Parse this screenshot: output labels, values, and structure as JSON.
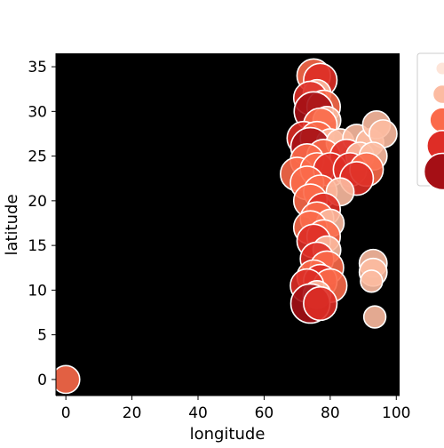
{
  "chart_data": {
    "type": "scatter",
    "title": "",
    "xlabel": "longitude",
    "ylabel": "latitude",
    "xlim": [
      -3,
      101
    ],
    "ylim": [
      -1.8,
      36.5
    ],
    "x_ticks": [
      0,
      20,
      40,
      60,
      80,
      100
    ],
    "y_ticks": [
      0,
      5,
      10,
      15,
      20,
      25,
      30,
      35
    ],
    "plot_background": "#000000",
    "grid": false,
    "legend_placement": "right, partially cropped",
    "legend_sizes": [
      1,
      2,
      3,
      4,
      5
    ],
    "legend_colors": [
      "#fee5d9",
      "#fcbba1",
      "#fb6a4a",
      "#de2d26",
      "#a50f15"
    ],
    "points": [
      {
        "x": 0,
        "y": 0,
        "size": 3,
        "color": "#fb6a4a"
      },
      {
        "x": 75,
        "y": 34,
        "size": 4,
        "color": "#fb6a4a"
      },
      {
        "x": 77,
        "y": 33.5,
        "size": 4,
        "color": "#de2d26"
      },
      {
        "x": 76,
        "y": 32,
        "size": 3,
        "color": "#fcbba1"
      },
      {
        "x": 74,
        "y": 31.5,
        "size": 4,
        "color": "#de2d26"
      },
      {
        "x": 78,
        "y": 30.5,
        "size": 4,
        "color": "#fb6a4a"
      },
      {
        "x": 75,
        "y": 30,
        "size": 5,
        "color": "#a50f15"
      },
      {
        "x": 79,
        "y": 29,
        "size": 3,
        "color": "#fcbba1"
      },
      {
        "x": 77,
        "y": 28.5,
        "size": 4,
        "color": "#fb6a4a"
      },
      {
        "x": 72,
        "y": 27,
        "size": 4,
        "color": "#de2d26"
      },
      {
        "x": 76,
        "y": 27,
        "size": 4,
        "color": "#fb6a4a"
      },
      {
        "x": 80,
        "y": 26.5,
        "size": 3,
        "color": "#fcbba1"
      },
      {
        "x": 74,
        "y": 26,
        "size": 5,
        "color": "#a50f15"
      },
      {
        "x": 83,
        "y": 26.5,
        "size": 3,
        "color": "#fcbba1"
      },
      {
        "x": 88,
        "y": 27,
        "size": 3,
        "color": "#fcbba1"
      },
      {
        "x": 92,
        "y": 26.5,
        "size": 3,
        "color": "#fcbba1"
      },
      {
        "x": 94,
        "y": 28.5,
        "size": 3,
        "color": "#fcbba1"
      },
      {
        "x": 96,
        "y": 27.5,
        "size": 3,
        "color": "#fcbba1"
      },
      {
        "x": 78,
        "y": 25,
        "size": 4,
        "color": "#fb6a4a"
      },
      {
        "x": 73,
        "y": 24.5,
        "size": 4,
        "color": "#fb6a4a"
      },
      {
        "x": 85,
        "y": 25,
        "size": 4,
        "color": "#de2d26"
      },
      {
        "x": 89,
        "y": 25,
        "size": 3,
        "color": "#fcbba1"
      },
      {
        "x": 93,
        "y": 25,
        "size": 3,
        "color": "#fcbba1"
      },
      {
        "x": 70,
        "y": 23,
        "size": 4,
        "color": "#fb6a4a"
      },
      {
        "x": 76,
        "y": 23.5,
        "size": 4,
        "color": "#fb6a4a"
      },
      {
        "x": 80,
        "y": 23.5,
        "size": 4,
        "color": "#de2d26"
      },
      {
        "x": 86,
        "y": 23.5,
        "size": 4,
        "color": "#de2d26"
      },
      {
        "x": 91,
        "y": 23.5,
        "size": 4,
        "color": "#fb6a4a"
      },
      {
        "x": 88,
        "y": 22.5,
        "size": 4,
        "color": "#de2d26"
      },
      {
        "x": 73,
        "y": 22,
        "size": 4,
        "color": "#fb6a4a"
      },
      {
        "x": 77,
        "y": 21,
        "size": 4,
        "color": "#fb6a4a"
      },
      {
        "x": 83,
        "y": 21,
        "size": 3,
        "color": "#fcbba1"
      },
      {
        "x": 74,
        "y": 20,
        "size": 4,
        "color": "#fb6a4a"
      },
      {
        "x": 78,
        "y": 19,
        "size": 4,
        "color": "#de2d26"
      },
      {
        "x": 76,
        "y": 18,
        "size": 4,
        "color": "#fb6a4a"
      },
      {
        "x": 80,
        "y": 17.5,
        "size": 3,
        "color": "#fcbba1"
      },
      {
        "x": 74,
        "y": 17,
        "size": 4,
        "color": "#fb6a4a"
      },
      {
        "x": 78,
        "y": 16,
        "size": 4,
        "color": "#fb6a4a"
      },
      {
        "x": 75,
        "y": 15.5,
        "size": 4,
        "color": "#de2d26"
      },
      {
        "x": 79,
        "y": 14.5,
        "size": 3,
        "color": "#fcbba1"
      },
      {
        "x": 76,
        "y": 13.5,
        "size": 4,
        "color": "#de2d26"
      },
      {
        "x": 79,
        "y": 12.5,
        "size": 4,
        "color": "#fb6a4a"
      },
      {
        "x": 75,
        "y": 11.5,
        "size": 4,
        "color": "#fb6a4a"
      },
      {
        "x": 77,
        "y": 11,
        "size": 4,
        "color": "#de2d26"
      },
      {
        "x": 80,
        "y": 10.5,
        "size": 4,
        "color": "#fb6a4a"
      },
      {
        "x": 73,
        "y": 10.5,
        "size": 4,
        "color": "#de2d26"
      },
      {
        "x": 76,
        "y": 9.5,
        "size": 3,
        "color": "#fcbba1"
      },
      {
        "x": 74,
        "y": 8.5,
        "size": 5,
        "color": "#a50f15"
      },
      {
        "x": 77,
        "y": 8.5,
        "size": 4,
        "color": "#de2d26"
      },
      {
        "x": 93,
        "y": 13,
        "size": 3,
        "color": "#fcbba1"
      },
      {
        "x": 93,
        "y": 12,
        "size": 3,
        "color": "#fcbba1"
      },
      {
        "x": 92.5,
        "y": 11,
        "size": 2,
        "color": "#fcbba1"
      },
      {
        "x": 93.5,
        "y": 7,
        "size": 2,
        "color": "#fcbba1"
      }
    ]
  }
}
